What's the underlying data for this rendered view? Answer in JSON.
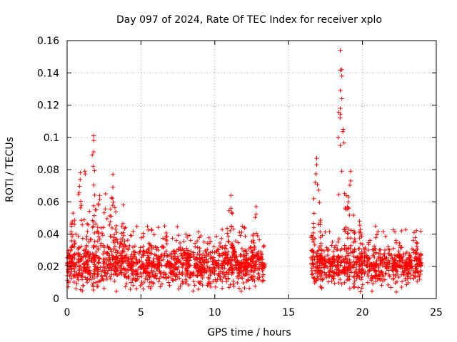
{
  "chart_data": {
    "type": "scatter",
    "title": "Day 097 of 2024, Rate Of TEC Index for receiver xplo",
    "xlabel": "GPS time / hours",
    "ylabel": "ROTI / TECUs",
    "xlim": [
      0,
      25
    ],
    "ylim": [
      0,
      0.16
    ],
    "x_ticks": [
      "0",
      "5",
      "10",
      "15",
      "20",
      "25"
    ],
    "y_ticks": [
      "0",
      "0.02",
      "0.04",
      "0.06",
      "0.08",
      "0.1",
      "0.12",
      "0.14",
      "0.16"
    ],
    "grid": true,
    "marker": "+",
    "marker_color": "#ff0000",
    "series": [
      {
        "name": "ROTI",
        "segments": [
          {
            "x_range": [
              0.0,
              13.4
            ],
            "baseline": 0.02
          },
          {
            "x_range": [
              16.5,
              24.0
            ],
            "baseline": 0.02
          }
        ],
        "peaks": [
          {
            "x": 0.4,
            "y": 0.053
          },
          {
            "x": 0.9,
            "y": 0.078
          },
          {
            "x": 1.2,
            "y": 0.079
          },
          {
            "x": 1.8,
            "y": 0.101
          },
          {
            "x": 1.8,
            "y": 0.098
          },
          {
            "x": 1.8,
            "y": 0.091
          },
          {
            "x": 1.7,
            "y": 0.089
          },
          {
            "x": 2.2,
            "y": 0.064
          },
          {
            "x": 2.6,
            "y": 0.065
          },
          {
            "x": 3.1,
            "y": 0.077
          },
          {
            "x": 3.1,
            "y": 0.069
          },
          {
            "x": 3.8,
            "y": 0.058
          },
          {
            "x": 6.6,
            "y": 0.045
          },
          {
            "x": 11.1,
            "y": 0.064
          },
          {
            "x": 11.1,
            "y": 0.056
          },
          {
            "x": 12.8,
            "y": 0.057
          },
          {
            "x": 16.8,
            "y": 0.072
          },
          {
            "x": 16.9,
            "y": 0.087
          },
          {
            "x": 16.9,
            "y": 0.083
          },
          {
            "x": 18.5,
            "y": 0.154
          },
          {
            "x": 18.6,
            "y": 0.142
          },
          {
            "x": 18.6,
            "y": 0.138
          },
          {
            "x": 18.5,
            "y": 0.129
          },
          {
            "x": 18.6,
            "y": 0.124
          },
          {
            "x": 18.5,
            "y": 0.118
          },
          {
            "x": 18.7,
            "y": 0.105
          },
          {
            "x": 18.5,
            "y": 0.095
          },
          {
            "x": 18.6,
            "y": 0.079
          },
          {
            "x": 19.2,
            "y": 0.079
          },
          {
            "x": 18.9,
            "y": 0.064
          },
          {
            "x": 19.8,
            "y": 0.048
          },
          {
            "x": 23.5,
            "y": 0.041
          }
        ]
      }
    ]
  }
}
